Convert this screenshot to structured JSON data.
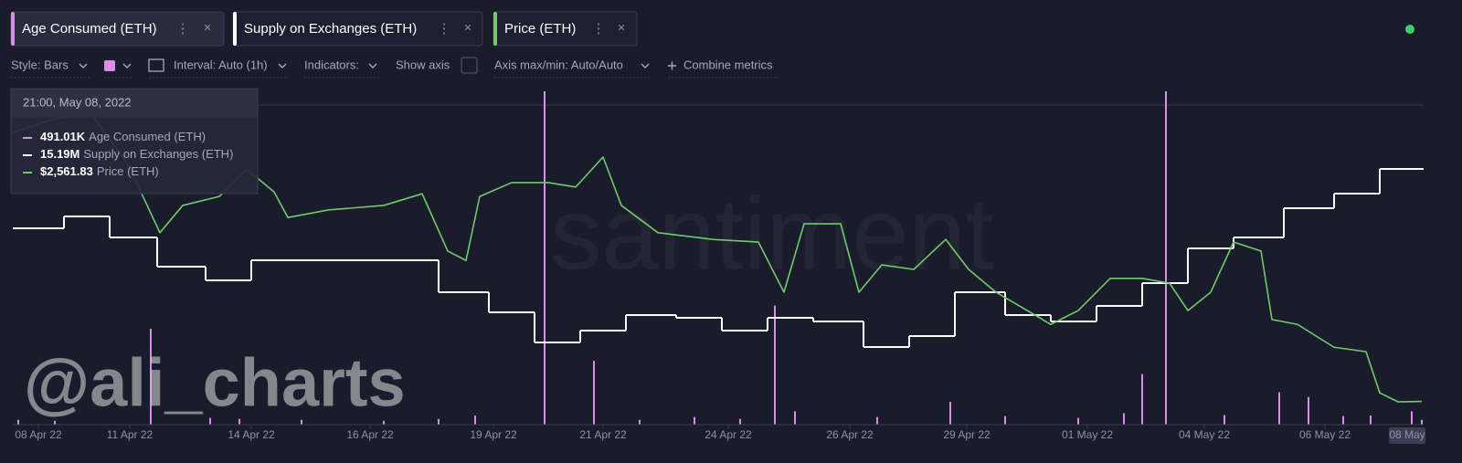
{
  "toolbar": {
    "style": "Style: Bars",
    "interval": "Interval: Auto (1h)",
    "indicators": "Indicators:",
    "show_axis": "Show axis",
    "axis_minmax": "Axis max/min: Auto/Auto",
    "combine": "Combine metrics"
  },
  "tooltip": {
    "date": "21:00, May 08, 2022",
    "rows": [
      {
        "value": "491.01K"
      },
      {
        "value": "15.19M"
      },
      {
        "value": "$2,561.83"
      }
    ]
  },
  "watermark": "santiment",
  "overlay_text": "@ali_charts",
  "chart_data": {
    "type": "line",
    "xlim": [
      -0.56,
      30.32
    ],
    "xticks": [
      {
        "value": 0,
        "label": "08 Apr 22"
      },
      {
        "value": 2.0,
        "label": "11 Apr 22"
      },
      {
        "value": 4.66,
        "label": "14 Apr 22"
      },
      {
        "value": 7.26,
        "label": "16 Apr 22"
      },
      {
        "value": 9.96,
        "label": "19 Apr 22"
      },
      {
        "value": 12.36,
        "label": "21 Apr 22"
      },
      {
        "value": 15.1,
        "label": "24 Apr 22"
      },
      {
        "value": 17.76,
        "label": "26 Apr 22"
      },
      {
        "value": 20.32,
        "label": "29 Apr 22"
      },
      {
        "value": 22.96,
        "label": "01 May 22"
      },
      {
        "value": 25.52,
        "label": "04 May 22"
      },
      {
        "value": 28.16,
        "label": "06 May 22"
      },
      {
        "value": 29.96,
        "label": "08 May"
      }
    ],
    "series": [
      {
        "name": "Age Consumed (ETH)",
        "type": "bar",
        "color": "#d98ee9",
        "ylim": [
          0,
          35000000
        ],
        "x": [
          -0.44,
          0.36,
          2.46,
          3.76,
          4.4,
          5.76,
          7.56,
          8.76,
          9.56,
          11.08,
          12.16,
          13.16,
          14.36,
          15.36,
          16.12,
          16.56,
          18.36,
          19.96,
          21.16,
          22.76,
          23.76,
          24.16,
          24.68,
          25.96,
          27.16,
          27.8,
          28.56,
          29.16,
          30.06,
          30.28
        ],
        "values": [
          500000,
          400000,
          10070000,
          700000,
          600000,
          500000,
          400000,
          600000,
          960000,
          35000000,
          6700000,
          500000,
          800000,
          600000,
          12500000,
          1400000,
          800000,
          2400000,
          900000,
          700000,
          1200000,
          5300000,
          35000000,
          1000000,
          3400000,
          2900000,
          900000,
          960000,
          1400000,
          491010
        ]
      },
      {
        "name": "Supply on Exchanges (ETH)",
        "type": "step",
        "color": "#ffffff",
        "ylim": [
          14770000,
          15317500
        ],
        "x": [
          -0.56,
          0.56,
          1.56,
          2.6,
          3.66,
          4.66,
          8.76,
          9.86,
          10.86,
          11.86,
          12.86,
          13.96,
          14.96,
          15.96,
          16.96,
          18.06,
          19.06,
          20.06,
          21.16,
          22.16,
          23.16,
          24.16,
          25.16,
          26.16,
          27.26,
          28.36,
          29.36
        ],
        "values": [
          15092500,
          15112000,
          15077500,
          15029500,
          15007000,
          15040000,
          14987500,
          14954500,
          14905000,
          14924500,
          14950000,
          14945500,
          14924500,
          14945500,
          14939500,
          14897500,
          14915500,
          14987500,
          14950000,
          14939500,
          14965000,
          15002500,
          15059500,
          15077500,
          15125500,
          15149500,
          15190000
        ]
      },
      {
        "name": "Price (ETH)",
        "type": "line",
        "color": "#6fcb69",
        "ylim": [
          2510,
          3255
        ],
        "x": [
          -0.56,
          0.36,
          1.16,
          1.96,
          2.66,
          3.16,
          3.96,
          4.56,
          5.16,
          5.46,
          6.36,
          7.56,
          8.4,
          8.96,
          9.36,
          9.66,
          10.36,
          11.16,
          11.76,
          12.36,
          12.76,
          13.56,
          14.76,
          15.76,
          16.32,
          16.76,
          17.56,
          17.96,
          18.46,
          19.16,
          19.86,
          20.36,
          20.96,
          22.16,
          22.76,
          23.46,
          24.16,
          24.76,
          25.16,
          25.66,
          26.16,
          26.76,
          27.0,
          27.56,
          28.36,
          29.06,
          29.36,
          29.76,
          30.28
        ],
        "values": [
          3163,
          3194,
          3204,
          3092,
          2939,
          3000,
          3020,
          3081,
          3030,
          2973,
          2990,
          3000,
          3026,
          2898,
          2877,
          3020,
          3051,
          3051,
          3041,
          3108,
          3000,
          2939,
          2924,
          2918,
          2806,
          2959,
          2959,
          2806,
          2867,
          2857,
          2924,
          2857,
          2806,
          2734,
          2765,
          2837,
          2837,
          2826,
          2765,
          2806,
          2918,
          2898,
          2745,
          2734,
          2683,
          2673,
          2581,
          2561,
          2561.83
        ]
      }
    ]
  }
}
